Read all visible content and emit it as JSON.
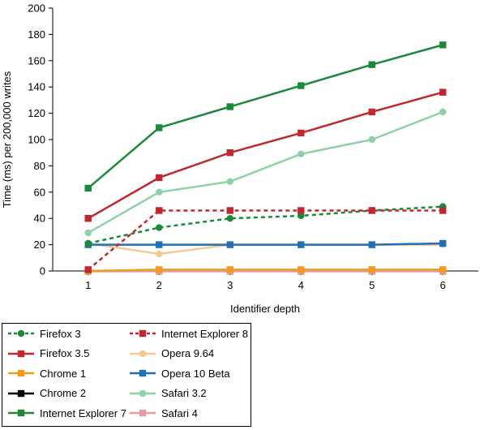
{
  "chart_data": {
    "type": "line",
    "title": "",
    "xlabel": "Identifier depth",
    "ylabel": "Time (ms) per 200,000 writes",
    "x": [
      1,
      2,
      3,
      4,
      5,
      6
    ],
    "xlim": [
      0.5,
      6.5
    ],
    "ylim": [
      0,
      200
    ],
    "yticks": [
      0,
      20,
      40,
      60,
      80,
      100,
      120,
      140,
      160,
      180,
      200
    ],
    "grid": false,
    "legend_position": "bottom-left",
    "series": [
      {
        "name": "Firefox 3",
        "color": "#1a8a3a",
        "dashed": true,
        "marker": "circle",
        "values": [
          21,
          33,
          40,
          42,
          46,
          49
        ]
      },
      {
        "name": "Internet Explorer 8",
        "color": "#c0282e",
        "dashed": true,
        "marker": "square",
        "values": [
          1,
          46,
          46,
          46,
          46,
          46
        ]
      },
      {
        "name": "Firefox 3.5",
        "color": "#c0282e",
        "dashed": false,
        "marker": "square",
        "values": [
          40,
          71,
          90,
          105,
          121,
          136
        ]
      },
      {
        "name": "Opera 9.64",
        "color": "#f6c98f",
        "dashed": false,
        "marker": "circle",
        "values": [
          21,
          13,
          20,
          20,
          20,
          20
        ]
      },
      {
        "name": "Chrome 1",
        "color": "#f39a1f",
        "dashed": false,
        "marker": "square",
        "values": [
          0,
          1,
          1,
          1,
          1,
          1
        ]
      },
      {
        "name": "Opera 10 Beta",
        "color": "#1f70b5",
        "dashed": false,
        "marker": "square",
        "values": [
          20,
          20,
          20,
          20,
          20,
          21
        ]
      },
      {
        "name": "Chrome 2",
        "color": "#000000",
        "dashed": false,
        "marker": "square",
        "values": [
          0,
          0,
          0,
          0,
          0,
          0
        ]
      },
      {
        "name": "Safari 3.2",
        "color": "#8ed1a6",
        "dashed": false,
        "marker": "circle",
        "values": [
          29,
          60,
          68,
          89,
          100,
          121
        ]
      },
      {
        "name": "Internet Explorer 7",
        "color": "#1a8a3a",
        "dashed": false,
        "marker": "square",
        "values": [
          63,
          109,
          125,
          141,
          157,
          172
        ]
      },
      {
        "name": "Safari 4",
        "color": "#e79aa3",
        "dashed": false,
        "marker": "square",
        "values": [
          0,
          0,
          0,
          0,
          0,
          0
        ]
      }
    ]
  }
}
